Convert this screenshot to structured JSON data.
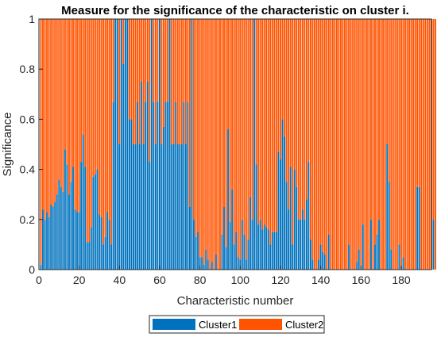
{
  "chart_data": {
    "type": "bar",
    "stacked": true,
    "title": "Measure for the significance of the characteristic on cluster i.",
    "xlabel": "Characteristic number",
    "ylabel": "Significance",
    "xlim": [
      0,
      195
    ],
    "ylim": [
      0,
      1
    ],
    "xticks": [
      0,
      20,
      40,
      60,
      80,
      100,
      120,
      140,
      160,
      180
    ],
    "yticks": [
      0,
      0.2,
      0.4,
      0.6,
      0.8,
      1
    ],
    "grid": false,
    "legend_position": "bottom",
    "colors": {
      "cluster1": "#0072BD",
      "cluster2": "#FF5300",
      "bar_edge": "#ffffff"
    },
    "x_start": 1,
    "series": [
      {
        "name": "Cluster1",
        "values": [
          0.02,
          0.24,
          0.2,
          0.23,
          0.21,
          0.26,
          0.25,
          0.27,
          0.3,
          0.36,
          0.33,
          0.31,
          0.48,
          0.42,
          0.3,
          0.35,
          0.41,
          0.24,
          0.23,
          0.23,
          0.43,
          0.54,
          0.41,
          0.11,
          0.11,
          0.17,
          0.37,
          0.38,
          0.4,
          0.22,
          0.21,
          0.1,
          0.13,
          0.23,
          0.2,
          0.1,
          0.67,
          1.0,
          1.0,
          0.5,
          1.0,
          0.82,
          1.0,
          1.0,
          0.6,
          0.6,
          0.5,
          0.5,
          0.67,
          0.5,
          0.75,
          0.5,
          0.67,
          0.75,
          0.43,
          1.0,
          0.67,
          0.5,
          0.67,
          1.0,
          0.5,
          0.57,
          0.67,
          0.67,
          1.0,
          0.5,
          0.5,
          0.67,
          0.5,
          0.5,
          0.5,
          0.67,
          0.5,
          0.67,
          0.25,
          1.0,
          0.2,
          0.13,
          0.15,
          0.05,
          0.05,
          0.02,
          0.08,
          0.04,
          0.0,
          0.03,
          0.0,
          0.06,
          0.0,
          0.0,
          0.14,
          0.25,
          0.09,
          0.56,
          0.19,
          0.32,
          0.1,
          0.15,
          0.05,
          0.04,
          0.2,
          0.14,
          0.04,
          0.12,
          0.29,
          0.2,
          1.0,
          0.42,
          0.18,
          0.2,
          0.16,
          0.18,
          0.17,
          0.16,
          0.1,
          0.15,
          0.15,
          0.15,
          0.47,
          0.44,
          0.6,
          0.53,
          0.35,
          0.24,
          0.41,
          0.1,
          0.4,
          0.33,
          0.2,
          0.2,
          0.24,
          0.2,
          0.28,
          0.43,
          0.12,
          0.04,
          0.0,
          0.0,
          0.04,
          0.1,
          0.07,
          0.06,
          0.0,
          0.14,
          0.0,
          0.0,
          0.0,
          0.0,
          0.0,
          0.0,
          0.0,
          0.0,
          0.0,
          0.1,
          0.0,
          0.0,
          0.0,
          0.03,
          0.08,
          0.0,
          0.18,
          0.0,
          0.0,
          0.0,
          0.2,
          0.0,
          0.1,
          0.14,
          0.2,
          0.0,
          0.0,
          0.0,
          0.5,
          0.35,
          0.08,
          0.0,
          0.0,
          0.0,
          0.1,
          0.0,
          0.05,
          0.0,
          0.0,
          0.0,
          0.0,
          0.0,
          0.0,
          0.33,
          0.33,
          0.0,
          0.0,
          0.0,
          0.0,
          0.0,
          0.0,
          0.2,
          0.0
        ]
      },
      {
        "name": "Cluster2",
        "values_rule": "1 - Cluster1"
      }
    ],
    "legend": [
      "Cluster1",
      "Cluster2"
    ]
  }
}
